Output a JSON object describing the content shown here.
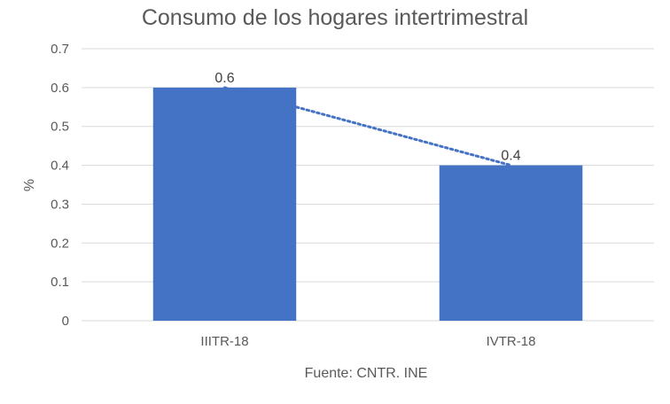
{
  "chart_data": {
    "type": "bar",
    "title": "Consumo de los hogares intertrimestral",
    "categories": [
      "IIITR-18",
      "IVTR-18"
    ],
    "values": [
      0.6,
      0.4
    ],
    "data_labels": [
      "0.6",
      "0.4"
    ],
    "ylabel": "%",
    "xlabel": "",
    "ylim": [
      0,
      0.7
    ],
    "yticks": [
      "0",
      "0.1",
      "0.2",
      "0.3",
      "0.4",
      "0.5",
      "0.6",
      "0.7"
    ],
    "grid": true,
    "legend": "none",
    "trendline": {
      "style": "dotted",
      "type": "linear"
    },
    "note": "Fuente: CNTR. INE"
  },
  "colors": {
    "bar": "#4472C4",
    "grid": "#D9D9D9",
    "text": "#595959",
    "title": "#595959",
    "label": "#404040"
  }
}
